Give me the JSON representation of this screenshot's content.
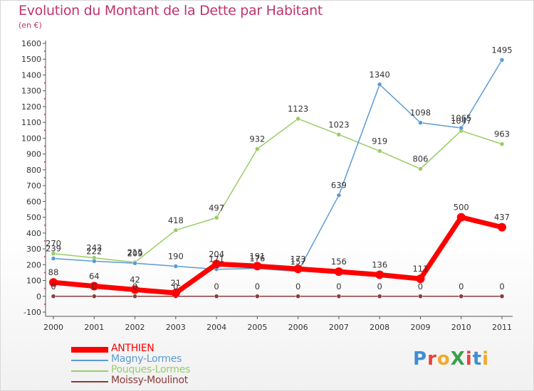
{
  "header": {
    "title": "Evolution du Montant de la Dette par Habitant",
    "unit": "(en €)"
  },
  "logo": {
    "text": "ProXiti",
    "letter_colors": [
      "#3f8fd1",
      "#e8413a",
      "#f2a92c",
      "#3aa14a",
      "#e8413a",
      "#3f8fd1",
      "#f2a92c"
    ]
  },
  "chart_data": {
    "type": "line",
    "title": "Evolution du Montant de la Dette par Habitant",
    "subtitle": "(en €)",
    "x": [
      "2000",
      "2001",
      "2002",
      "2003",
      "2004",
      "2005",
      "2006",
      "2007",
      "2008",
      "2009",
      "2010",
      "2011"
    ],
    "ylim": [
      -100,
      1600
    ],
    "yticks": [
      -100,
      0,
      100,
      200,
      300,
      400,
      500,
      600,
      700,
      800,
      900,
      1000,
      1100,
      1200,
      1300,
      1400,
      1500,
      1600
    ],
    "grid": false,
    "legend_position": "bottom-left",
    "series": [
      {
        "name": "ANTHIEN",
        "color": "#ff0000",
        "values": [
          88,
          64,
          42,
          21,
          204,
          191,
          173,
          156,
          136,
          111,
          500,
          437
        ],
        "labels": [
          "88",
          "64",
          "42",
          "21",
          "204",
          "191",
          "173",
          "156",
          "136",
          "111",
          "500",
          "437"
        ]
      },
      {
        "name": "Magny-Lormes",
        "color": "#5b9bd5",
        "values": [
          239,
          222,
          209,
          190,
          171,
          176,
          157,
          639,
          1340,
          1098,
          1065,
          1495
        ],
        "labels": [
          "239",
          "222",
          "209",
          "190",
          "171",
          "176",
          "157",
          "639",
          "1340",
          "1098",
          "1065",
          "1495"
        ]
      },
      {
        "name": "Pouques-Lormes",
        "color": "#99cc66",
        "values": [
          270,
          243,
          215,
          418,
          497,
          932,
          1123,
          1023,
          919,
          806,
          1047,
          963
        ],
        "labels": [
          "270",
          "243",
          "215",
          "418",
          "497",
          "932",
          "1123",
          "1023",
          "919",
          "806",
          "1047",
          "963"
        ]
      },
      {
        "name": "Moissy-Moulinot",
        "color": "#8b3a3a",
        "values": [
          0,
          0,
          0,
          0,
          0,
          0,
          0,
          0,
          0,
          0,
          0,
          0
        ],
        "labels": [
          "0",
          "0",
          "0",
          "0",
          "0",
          "0",
          "0",
          "0",
          "0",
          "0",
          "0",
          "0"
        ]
      }
    ]
  }
}
